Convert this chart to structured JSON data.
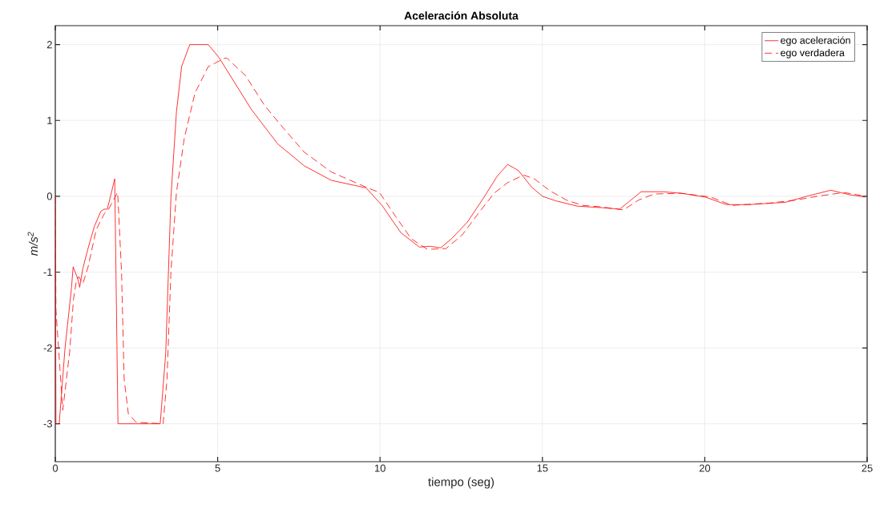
{
  "chart_data": {
    "type": "line",
    "title": "Aceleración Absoluta",
    "xlabel": "tiempo (seg)",
    "ylabel": "m/s$^{2}$",
    "xlim": [
      0,
      25
    ],
    "ylim": [
      -3.5,
      2.25
    ],
    "xticks": [
      0,
      5,
      10,
      15,
      20,
      25
    ],
    "yticks": [
      -3,
      -2,
      -1,
      0,
      1,
      2
    ],
    "grid": true,
    "legend": "top right",
    "series": [
      {
        "name": "ego aceleración",
        "color": "#ff0000",
        "line_style": "solid",
        "x": [
          0,
          0.02,
          0.12,
          0.3,
          0.5,
          0.55,
          0.7,
          0.75,
          0.85,
          1.0,
          1.2,
          1.4,
          1.5,
          1.6,
          1.7,
          1.83,
          1.93,
          2.5,
          3.0,
          3.23,
          3.4,
          3.56,
          3.73,
          3.89,
          4.14,
          4.71,
          5.04,
          6.03,
          6.85,
          7.67,
          8.5,
          9.57,
          10.06,
          10.64,
          11.21,
          11.54,
          11.87,
          12.2,
          12.69,
          13.19,
          13.6,
          13.93,
          14.26,
          14.67,
          15.0,
          15.41,
          16.07,
          16.81,
          17.38,
          18.04,
          18.7,
          19.27,
          20.01,
          20.67,
          21.33,
          22.48,
          23.14,
          23.88,
          24.46,
          24.95
        ],
        "values": [
          0,
          -3,
          -3,
          -2.0,
          -1.2,
          -0.93,
          -1.1,
          -1.2,
          -0.95,
          -0.7,
          -0.4,
          -0.2,
          -0.17,
          -0.17,
          0.0,
          0.23,
          -3,
          -3,
          -3,
          -3,
          -2.07,
          -0.02,
          1.11,
          1.71,
          2.0,
          2.0,
          1.83,
          1.15,
          0.69,
          0.4,
          0.21,
          0.11,
          -0.12,
          -0.48,
          -0.67,
          -0.66,
          -0.68,
          -0.56,
          -0.34,
          -0.02,
          0.26,
          0.42,
          0.34,
          0.12,
          0,
          -0.06,
          -0.13,
          -0.15,
          -0.17,
          0.06,
          0.06,
          0.04,
          -0.01,
          -0.11,
          -0.11,
          -0.08,
          0,
          0.08,
          0.02,
          -0.01
        ]
      },
      {
        "name": "ego verdadera",
        "color": "#ff0000",
        "line_style": "dashed",
        "x": [
          0,
          0.02,
          0.23,
          0.44,
          0.56,
          0.64,
          0.72,
          0.85,
          1.01,
          1.26,
          1.51,
          1.63,
          1.79,
          1.92,
          2.04,
          2.12,
          2.25,
          2.49,
          3.32,
          3.44,
          3.56,
          3.73,
          3.97,
          4.3,
          4.71,
          5.21,
          5.29,
          5.86,
          6.44,
          7.02,
          7.67,
          8.5,
          9.57,
          9.98,
          10.14,
          10.47,
          10.96,
          11.46,
          12.03,
          12.53,
          13.02,
          13.51,
          13.93,
          14.42,
          14.75,
          15.24,
          15.74,
          16.23,
          16.81,
          17.5,
          17.96,
          18.45,
          19.27,
          20.18,
          20.84,
          21.99,
          22.81,
          23.47,
          24.29,
          24.95
        ],
        "values": [
          0,
          -1.5,
          -2.82,
          -2.06,
          -1.36,
          -1.14,
          -1.06,
          -1.15,
          -0.93,
          -0.44,
          -0.23,
          -0.18,
          -0.05,
          0.05,
          -1.0,
          -2.41,
          -2.87,
          -2.98,
          -3,
          -2.41,
          -1.0,
          0.05,
          0.76,
          1.36,
          1.71,
          1.82,
          1.82,
          1.59,
          1.2,
          0.9,
          0.58,
          0.32,
          0.12,
          0.05,
          -0.05,
          -0.26,
          -0.56,
          -0.7,
          -0.69,
          -0.51,
          -0.23,
          0.04,
          0.18,
          0.28,
          0.23,
          0.07,
          -0.05,
          -0.12,
          -0.14,
          -0.18,
          -0.05,
          0.03,
          0.04,
          -0.01,
          -0.12,
          -0.09,
          -0.05,
          0,
          0.05,
          0
        ]
      }
    ]
  }
}
